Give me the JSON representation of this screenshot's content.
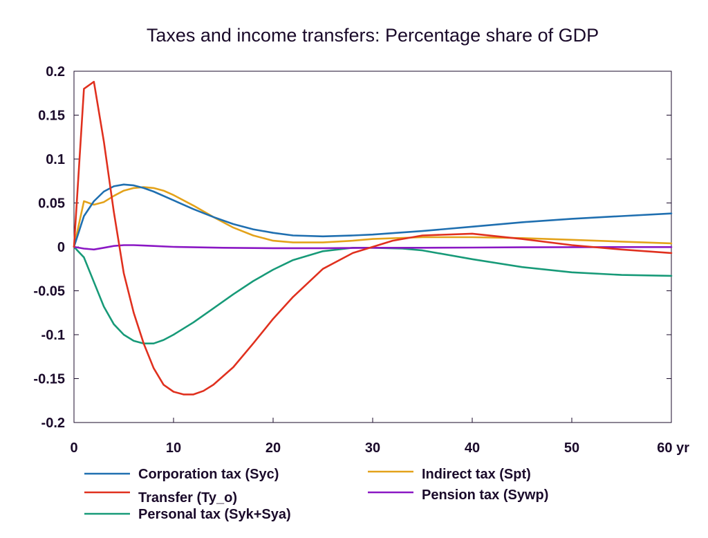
{
  "chart_data": {
    "type": "line",
    "title": "Taxes and income transfers: Percentage share of GDP",
    "xlabel": "",
    "ylabel": "",
    "xlim": [
      0,
      60
    ],
    "ylim": [
      -0.2,
      0.2
    ],
    "x_ticks": [
      0,
      10,
      20,
      30,
      40,
      50,
      60
    ],
    "x_tick_labels": [
      "0",
      "10",
      "20",
      "30",
      "40",
      "50",
      "60 yr"
    ],
    "y_ticks": [
      0.2,
      0.15,
      0.1,
      0.05,
      0,
      -0.05,
      -0.1,
      -0.15,
      -0.2
    ],
    "y_tick_labels": [
      "0.2",
      "0.15",
      "0.1",
      "0.05",
      "0",
      "-0.05",
      "-0.1",
      "-0.15",
      "-0.2"
    ],
    "grid": false,
    "legend_position": "bottom",
    "series": [
      {
        "name": "Corporation tax (Syc)",
        "color": "#1f6fb0",
        "x": [
          0,
          1,
          2,
          3,
          4,
          5,
          6,
          7,
          8,
          10,
          12,
          14,
          16,
          18,
          20,
          22,
          25,
          28,
          30,
          35,
          40,
          45,
          50,
          55,
          60
        ],
        "y": [
          0,
          0.035,
          0.052,
          0.063,
          0.069,
          0.071,
          0.07,
          0.067,
          0.063,
          0.053,
          0.043,
          0.034,
          0.026,
          0.02,
          0.016,
          0.013,
          0.012,
          0.013,
          0.014,
          0.018,
          0.023,
          0.028,
          0.032,
          0.035,
          0.038
        ]
      },
      {
        "name": "Transfer (Ty_o)",
        "color": "#e0301e",
        "x": [
          0,
          1,
          2,
          3,
          4,
          5,
          6,
          7,
          8,
          9,
          10,
          11,
          12,
          13,
          14,
          16,
          18,
          20,
          22,
          25,
          28,
          30,
          32,
          35,
          40,
          45,
          50,
          55,
          60
        ],
        "y": [
          0,
          0.18,
          0.188,
          0.12,
          0.04,
          -0.03,
          -0.075,
          -0.11,
          -0.138,
          -0.157,
          -0.165,
          -0.168,
          -0.168,
          -0.164,
          -0.157,
          -0.137,
          -0.11,
          -0.082,
          -0.057,
          -0.025,
          -0.007,
          0,
          0.007,
          0.013,
          0.015,
          0.009,
          0.002,
          -0.003,
          -0.007
        ]
      },
      {
        "name": "Personal tax (Syk+Sya)",
        "color": "#179a78",
        "x": [
          0,
          1,
          2,
          3,
          4,
          5,
          6,
          7,
          8,
          9,
          10,
          12,
          14,
          16,
          18,
          20,
          22,
          25,
          28,
          30,
          33,
          35,
          40,
          45,
          50,
          55,
          60
        ],
        "y": [
          0,
          -0.012,
          -0.04,
          -0.068,
          -0.088,
          -0.1,
          -0.107,
          -0.11,
          -0.11,
          -0.106,
          -0.1,
          -0.086,
          -0.07,
          -0.054,
          -0.039,
          -0.026,
          -0.015,
          -0.005,
          -0.001,
          -0.001,
          -0.002,
          -0.004,
          -0.014,
          -0.023,
          -0.029,
          -0.032,
          -0.033
        ]
      },
      {
        "name": "Indirect tax (Spt)",
        "color": "#e3a21a",
        "x": [
          0,
          1,
          2,
          3,
          4,
          5,
          6,
          7,
          8,
          9,
          10,
          12,
          14,
          16,
          18,
          20,
          22,
          25,
          28,
          30,
          35,
          40,
          45,
          50,
          55,
          60
        ],
        "y": [
          0,
          0.052,
          0.048,
          0.051,
          0.058,
          0.064,
          0.067,
          0.068,
          0.067,
          0.064,
          0.059,
          0.047,
          0.034,
          0.022,
          0.013,
          0.007,
          0.005,
          0.005,
          0.007,
          0.009,
          0.011,
          0.011,
          0.01,
          0.008,
          0.006,
          0.004
        ]
      },
      {
        "name": "Pension tax (Sywp)",
        "color": "#8a17c4",
        "x": [
          0,
          1,
          2,
          3,
          4,
          5,
          6,
          7,
          8,
          10,
          15,
          20,
          25,
          30,
          35,
          40,
          45,
          50,
          55,
          60
        ],
        "y": [
          0,
          -0.002,
          -0.003,
          -0.001,
          0.001,
          0.002,
          0.002,
          0.0015,
          0.001,
          0,
          -0.001,
          -0.0015,
          -0.0015,
          -0.001,
          -0.001,
          -0.0008,
          -0.0005,
          -0.0003,
          -0.0002,
          -0.0002
        ]
      }
    ]
  }
}
